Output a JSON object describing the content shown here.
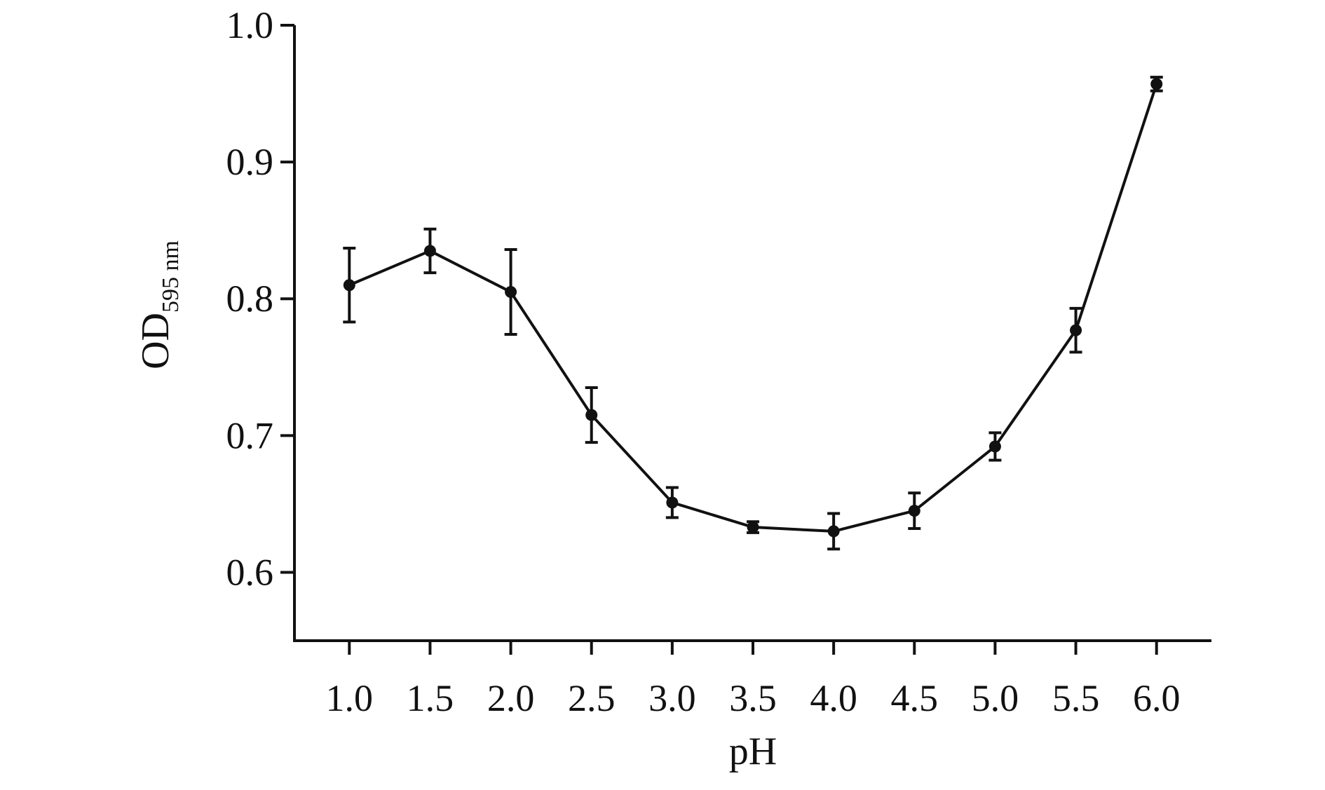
{
  "chart_data": {
    "type": "line",
    "title": "",
    "xlabel": "pH",
    "ylabel": {
      "main": "OD",
      "subscript": "595 nm"
    },
    "x": [
      1.0,
      1.5,
      2.0,
      2.5,
      3.0,
      3.5,
      4.0,
      4.5,
      5.0,
      5.5,
      6.0
    ],
    "x_tick_labels": [
      "1.0",
      "1.5",
      "2.0",
      "2.5",
      "3.0",
      "3.5",
      "4.0",
      "4.5",
      "5.0",
      "5.5",
      "6.0"
    ],
    "y_ticks": [
      0.6,
      0.7,
      0.8,
      0.9,
      1.0
    ],
    "y_tick_labels": [
      "0.6",
      "0.7",
      "0.8",
      "0.9",
      "1.0"
    ],
    "ylim": [
      0.55,
      1.0
    ],
    "xlim": [
      0.66,
      6.34
    ],
    "grid": false,
    "legend": "none",
    "series": [
      {
        "values": [
          0.81,
          0.835,
          0.805,
          0.715,
          0.651,
          0.633,
          0.63,
          0.645,
          0.692,
          0.777,
          0.957
        ],
        "errors": [
          0.027,
          0.016,
          0.031,
          0.02,
          0.011,
          0.004,
          0.013,
          0.013,
          0.01,
          0.016,
          0.005
        ],
        "color": "#111111",
        "marker": "circle"
      }
    ]
  }
}
